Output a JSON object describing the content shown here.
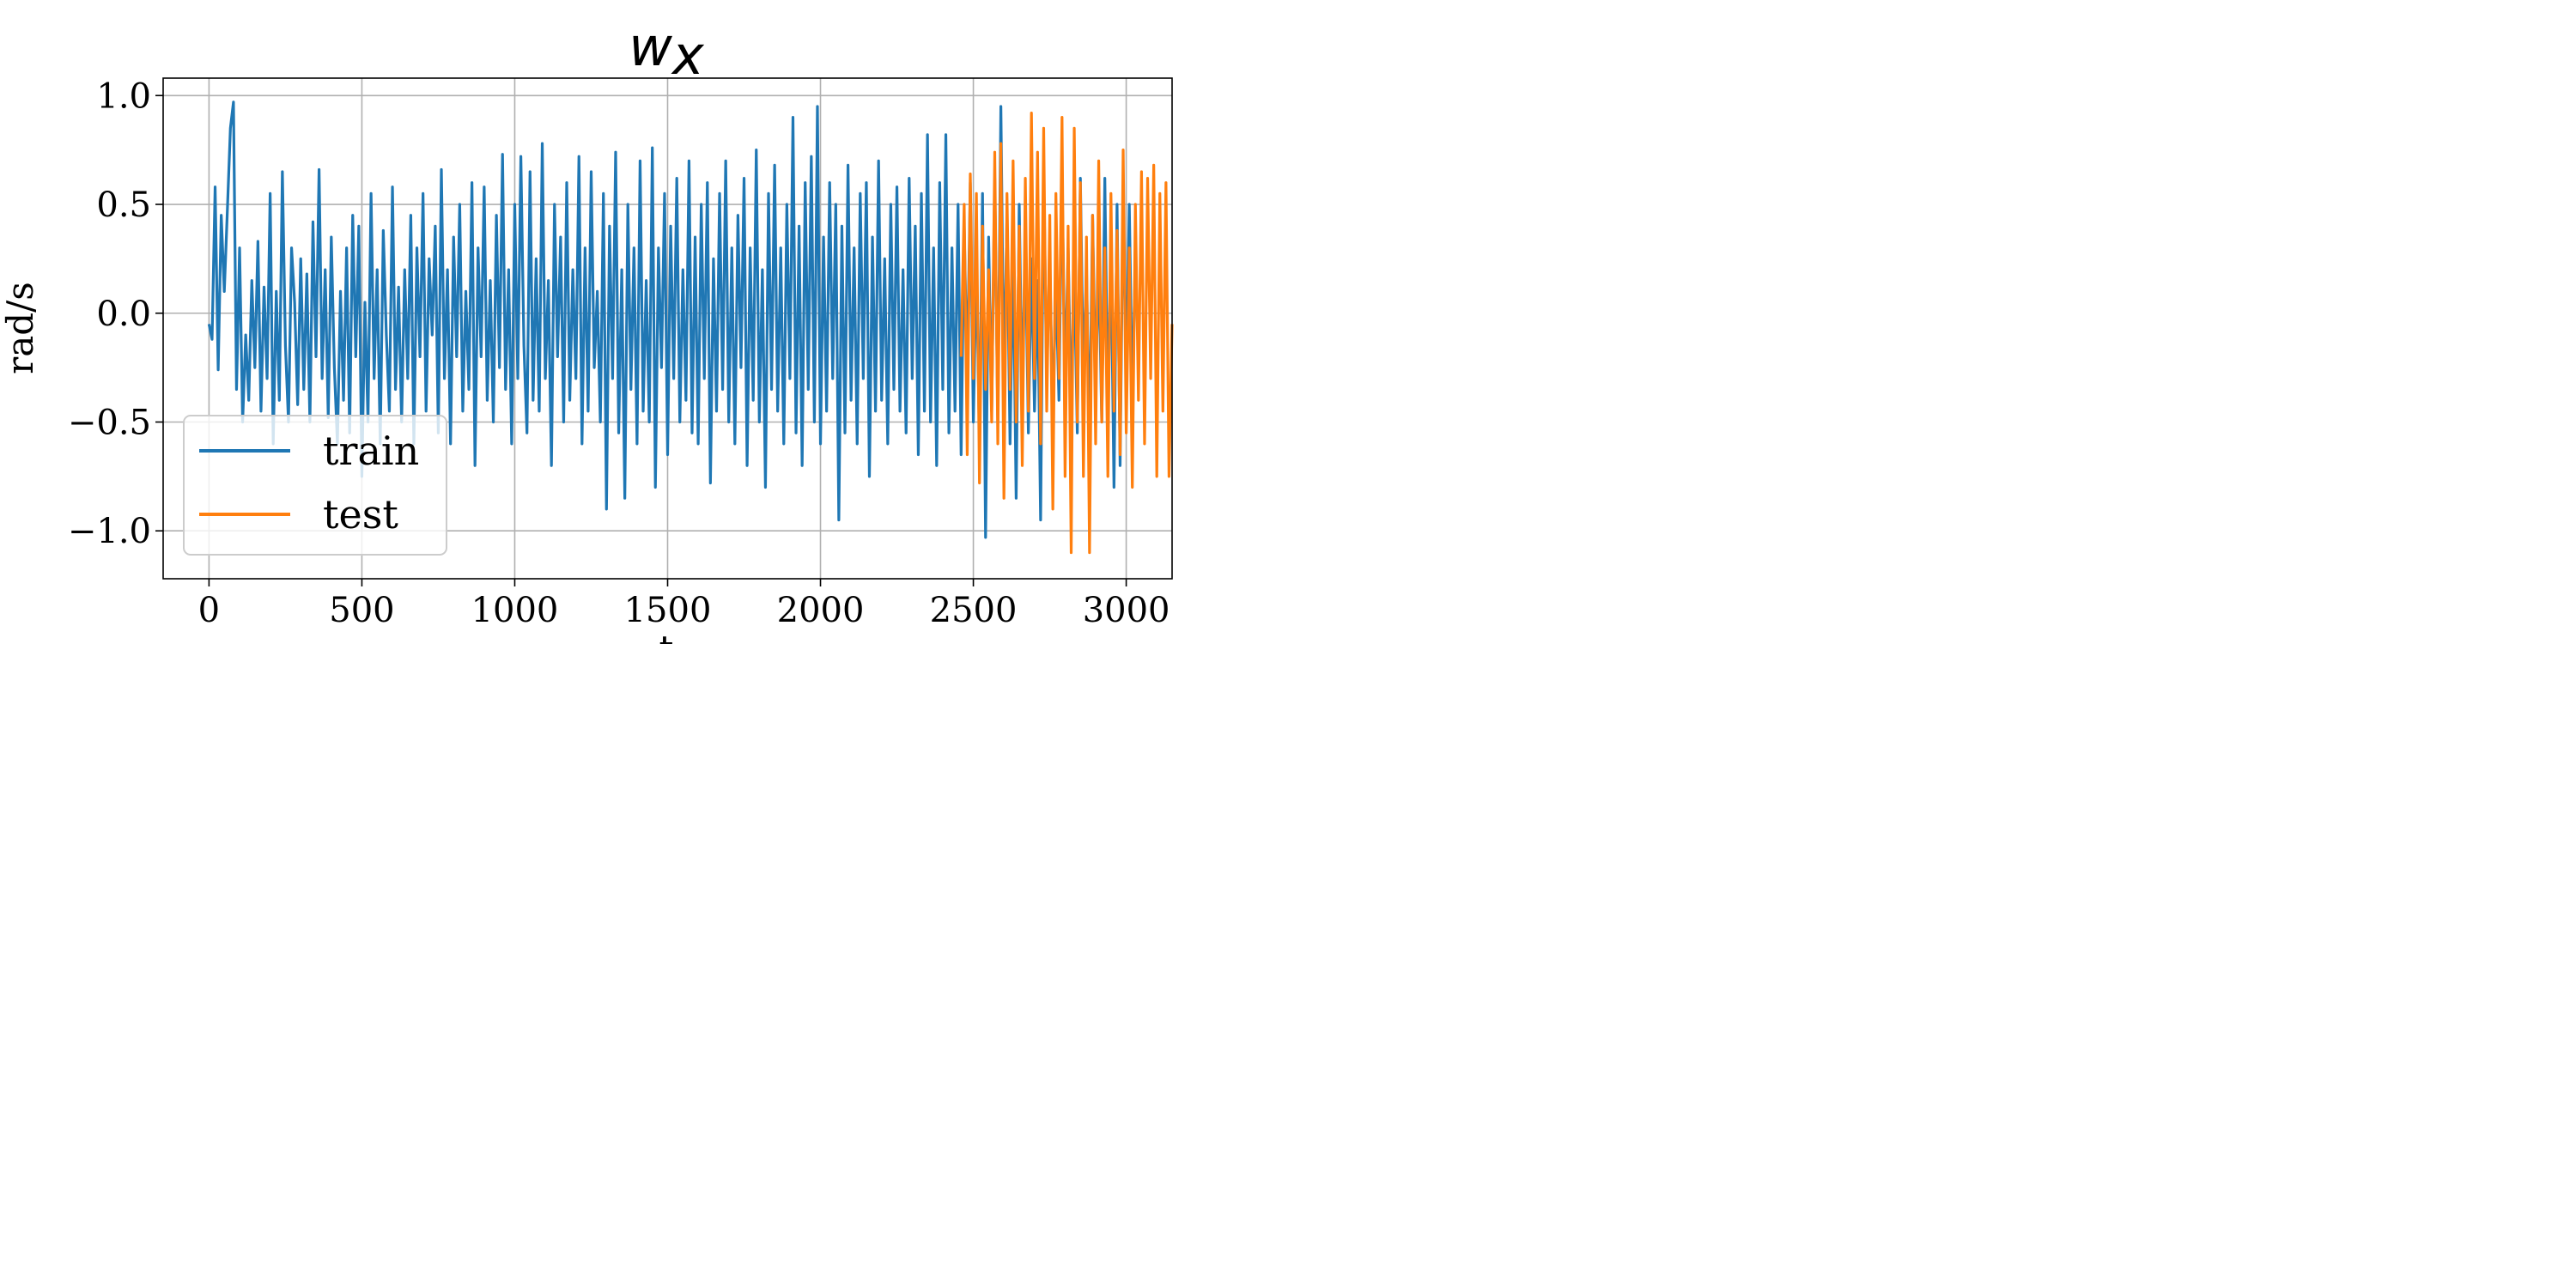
{
  "chart_data": {
    "type": "line",
    "title_base": "w",
    "title_sub": "x",
    "xlabel": "t",
    "ylabel": "rad/s",
    "xlim": [
      -150,
      3150
    ],
    "ylim": [
      -1.22,
      1.08
    ],
    "xticks": [
      0,
      500,
      1000,
      1500,
      2000,
      2500,
      3000
    ],
    "xtick_labels": [
      "0",
      "500",
      "1000",
      "1500",
      "2000",
      "2500",
      "3000"
    ],
    "yticks": [
      1.0,
      0.5,
      0.0,
      -0.5,
      -1.0
    ],
    "ytick_labels": [
      "1.0",
      "0.5",
      "0.0",
      "−0.5",
      "−1.0"
    ],
    "grid": true,
    "legend_position": "lower-left",
    "series": [
      {
        "name": "train",
        "color": "#1f77b4",
        "x_start": 0,
        "x_step": 10,
        "values": [
          -0.05,
          -0.12,
          0.58,
          -0.26,
          0.45,
          0.1,
          0.47,
          0.85,
          0.97,
          -0.35,
          0.3,
          -0.5,
          -0.1,
          -0.4,
          0.15,
          -0.25,
          0.33,
          -0.45,
          0.12,
          -0.3,
          0.55,
          -0.6,
          0.1,
          -0.4,
          0.65,
          -0.15,
          -0.5,
          0.3,
          0.05,
          -0.42,
          0.25,
          -0.35,
          0.18,
          -0.5,
          0.42,
          -0.2,
          0.66,
          -0.3,
          0.2,
          -0.48,
          0.35,
          -0.25,
          -0.6,
          0.1,
          -0.4,
          0.3,
          -0.55,
          0.45,
          -0.2,
          0.4,
          -0.75,
          0.05,
          -0.5,
          0.55,
          -0.3,
          0.2,
          -0.6,
          0.38,
          -0.1,
          -0.45,
          0.58,
          -0.35,
          0.12,
          -0.5,
          0.2,
          -0.3,
          0.45,
          -0.6,
          0.3,
          -0.2,
          0.55,
          -0.45,
          0.25,
          -0.1,
          0.4,
          -0.55,
          0.66,
          -0.3,
          0.2,
          -0.6,
          0.35,
          -0.2,
          0.5,
          -0.45,
          0.1,
          -0.35,
          0.6,
          -0.7,
          0.3,
          -0.2,
          0.58,
          -0.4,
          0.15,
          -0.5,
          0.45,
          -0.25,
          0.73,
          -0.35,
          0.2,
          -0.6,
          0.5,
          -0.3,
          0.72,
          -0.15,
          -0.55,
          0.65,
          -0.4,
          0.25,
          -0.45,
          0.78,
          -0.3,
          0.15,
          -0.7,
          0.5,
          -0.2,
          0.35,
          -0.5,
          0.6,
          -0.4,
          0.2,
          -0.3,
          0.72,
          -0.6,
          0.3,
          -0.45,
          0.65,
          -0.25,
          0.1,
          -0.5,
          0.55,
          -0.9,
          0.4,
          -0.3,
          0.74,
          -0.55,
          0.2,
          -0.85,
          0.5,
          -0.35,
          0.3,
          -0.6,
          0.7,
          -0.45,
          0.15,
          -0.5,
          0.76,
          -0.8,
          0.3,
          -0.25,
          0.55,
          -0.65,
          0.4,
          -0.3,
          0.62,
          -0.5,
          0.2,
          -0.4,
          0.7,
          -0.55,
          0.35,
          -0.6,
          0.5,
          -0.3,
          0.6,
          -0.78,
          0.25,
          -0.45,
          0.55,
          -0.35,
          0.7,
          -0.5,
          0.3,
          -0.6,
          0.45,
          -0.25,
          0.62,
          -0.7,
          0.3,
          -0.4,
          0.75,
          -0.5,
          0.2,
          -0.8,
          0.55,
          -0.35,
          0.68,
          -0.45,
          0.3,
          -0.6,
          0.5,
          -0.3,
          0.9,
          -0.55,
          0.4,
          -0.7,
          0.6,
          -0.35,
          0.72,
          -0.5,
          0.95,
          -0.6,
          0.35,
          -0.45,
          0.6,
          -0.3,
          0.5,
          -0.95,
          0.4,
          -0.55,
          0.68,
          -0.4,
          0.3,
          -0.6,
          0.55,
          -0.3,
          0.6,
          -0.75,
          0.35,
          -0.45,
          0.7,
          -0.4,
          0.25,
          -0.6,
          0.5,
          -0.35,
          0.58,
          -0.45,
          0.2,
          -0.55,
          0.62,
          -0.3,
          0.4,
          -0.65,
          0.55,
          -0.45,
          0.82,
          -0.5,
          0.3,
          -0.7,
          0.6,
          -0.35,
          0.82,
          -0.55,
          0.3,
          -0.45,
          0.5,
          -0.65,
          0.4,
          -0.3,
          0.6,
          -0.5,
          0.25,
          -0.6,
          0.55,
          -1.03,
          0.35,
          -0.45,
          0.62,
          -0.5,
          0.95,
          -0.35,
          0.45,
          -0.6,
          0.3,
          -0.85,
          0.5,
          -0.4,
          0.35,
          -0.55,
          0.25,
          -0.45,
          0.15,
          -0.95,
          0.66,
          -0.3,
          0.25,
          -0.5,
          0.15,
          -0.4,
          0.66,
          -0.35,
          0.3,
          -0.45,
          0.2,
          -0.55,
          0.62,
          -0.3,
          0.2,
          -0.6,
          0.45,
          -0.35,
          0.25,
          -0.5,
          0.62,
          -0.45,
          0.3,
          -0.8,
          0.5,
          -0.7,
          0.55,
          -0.3,
          0.5,
          -0.4,
          0.25,
          -0.2
        ],
        "values_note": "sampled"
      },
      {
        "name": "test",
        "color": "#ff7f0e",
        "x_start": 2460,
        "x_step": 10,
        "values": [
          -0.2,
          0.5,
          -0.65,
          0.64,
          -0.3,
          0.55,
          -0.78,
          0.4,
          -0.35,
          0.2,
          -0.5,
          0.74,
          -0.6,
          0.78,
          -0.85,
          0.55,
          -0.35,
          0.7,
          -0.5,
          0.4,
          -0.7,
          0.62,
          -0.45,
          0.92,
          -0.3,
          0.74,
          -0.6,
          0.85,
          -0.45,
          0.45,
          -0.9,
          0.55,
          -0.3,
          0.9,
          -0.75,
          0.4,
          -1.1,
          0.85,
          -0.5,
          0.6,
          -0.75,
          0.35,
          -1.1,
          0.45,
          -0.6,
          0.7,
          -0.5,
          0.3,
          -0.75,
          0.55,
          -0.45,
          0.38,
          -0.65,
          0.75,
          -0.55,
          0.3,
          -0.8,
          0.5,
          -0.4,
          0.65,
          -0.6,
          0.62,
          -0.3,
          0.68,
          -0.75,
          0.55,
          -0.45,
          0.6,
          -0.75,
          -0.05
        ]
      }
    ]
  }
}
